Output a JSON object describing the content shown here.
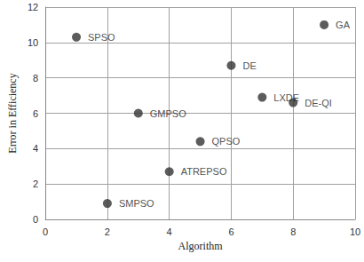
{
  "chart_data": {
    "type": "scatter",
    "x_label": "Algorithm",
    "y_label": "Error in Efficiency",
    "x": [
      1,
      2,
      3,
      4,
      5,
      6,
      7,
      8,
      9
    ],
    "values": [
      10.3,
      0.9,
      6.0,
      2.7,
      4.4,
      8.7,
      6.9,
      6.6,
      11.0
    ],
    "labels": [
      "SPSO",
      "SMPSO",
      "GMPSO",
      "ATREPSO",
      "QPSO",
      "DE",
      "LXDE",
      "DE-QI",
      "GA"
    ],
    "color": "#333333",
    "marker": "circle",
    "xlim": [
      0,
      10
    ],
    "xticks": [
      0,
      2,
      4,
      6,
      8,
      10
    ],
    "ylim": [
      0,
      12
    ],
    "yticks": [
      0,
      2,
      4,
      6,
      8,
      10,
      12
    ],
    "grid": true
  }
}
